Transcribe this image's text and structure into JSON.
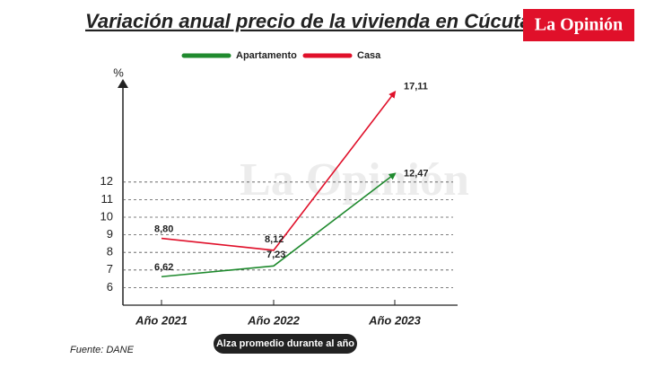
{
  "chart_data": {
    "type": "line",
    "title": "Variación anual precio de la vivienda en Cúcuta",
    "brand": "La Opinión",
    "watermark": "La Opinión",
    "y_label": "%",
    "categories": [
      "Año 2021",
      "Año 2022",
      "Año 2023"
    ],
    "series": [
      {
        "name": "Apartamento",
        "color": "#1f8a2e",
        "values": [
          6.62,
          7.23,
          12.47
        ],
        "value_labels": [
          "6,62",
          "7,23",
          "12,47"
        ]
      },
      {
        "name": "Casa",
        "color": "#e0102a",
        "values": [
          8.8,
          8.12,
          17.11
        ],
        "value_labels": [
          "8,80",
          "8,12",
          "17,11"
        ]
      }
    ],
    "ylim": [
      5,
      17.5
    ],
    "yticks": [
      6,
      7,
      8,
      9,
      10,
      11,
      12
    ],
    "grid": true,
    "source": "Fuente: DANE",
    "note": "Alza promedio durante al año"
  }
}
